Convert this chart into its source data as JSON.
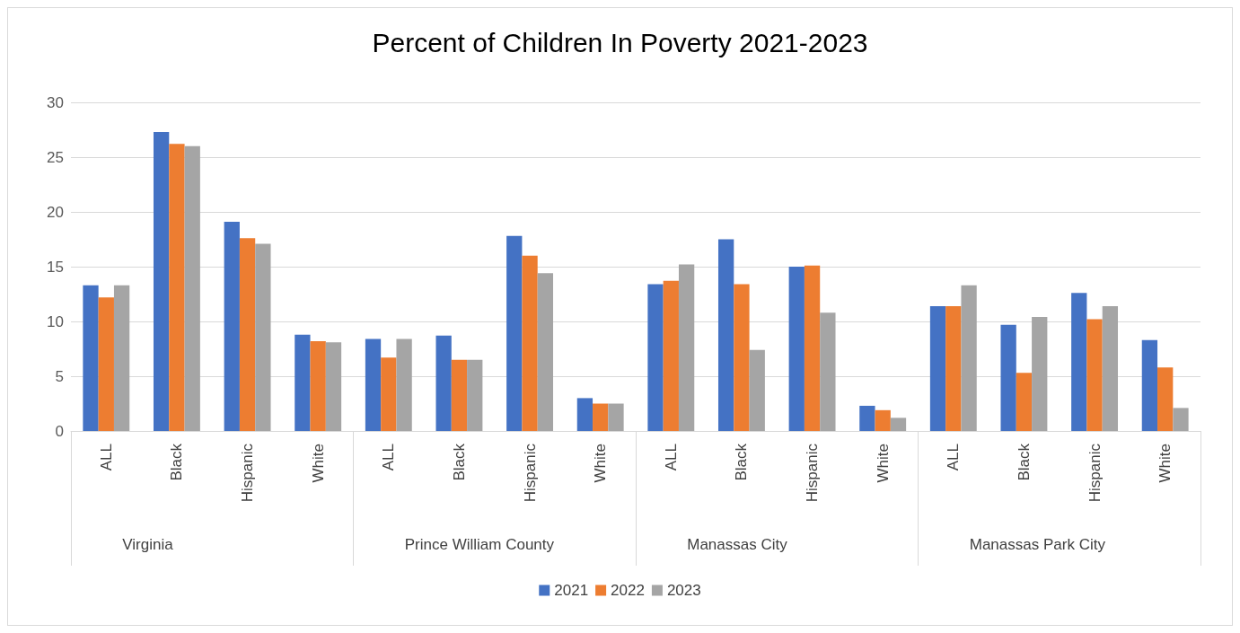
{
  "chart_data": {
    "type": "bar",
    "title": "Percent of Children In Poverty 2021-2023",
    "categories": [
      "ALL",
      "Black",
      "Hispanic",
      "White",
      "ALL",
      "Black",
      "Hispanic",
      "White",
      "ALL",
      "Black",
      "Hispanic",
      "White",
      "ALL",
      "Black",
      "Hispanic",
      "White"
    ],
    "annotations": [
      "Virginia",
      "Prince William County",
      "Manassas City",
      "Manassas Park City"
    ],
    "series": [
      {
        "name": "2021",
        "color": "#4472c4",
        "values": [
          13.3,
          27.3,
          19.1,
          8.8,
          8.4,
          8.7,
          17.8,
          3.0,
          13.4,
          17.5,
          15.0,
          2.3,
          11.4,
          9.7,
          12.6,
          8.3
        ]
      },
      {
        "name": "2022",
        "color": "#ed7d31",
        "values": [
          12.2,
          26.2,
          17.6,
          8.2,
          6.7,
          6.5,
          16.0,
          2.5,
          13.7,
          13.4,
          15.1,
          1.9,
          11.4,
          5.3,
          10.2,
          5.8
        ]
      },
      {
        "name": "2023",
        "color": "#a5a5a5",
        "values": [
          13.3,
          26.0,
          17.1,
          8.1,
          8.4,
          6.5,
          14.4,
          2.5,
          15.2,
          7.4,
          10.8,
          1.2,
          13.3,
          10.4,
          11.4,
          2.1
        ]
      }
    ],
    "ylim": [
      0,
      30
    ],
    "yticks": [
      0,
      5,
      10,
      15,
      20,
      25,
      30
    ],
    "grid": "y",
    "legend": "bottom"
  }
}
